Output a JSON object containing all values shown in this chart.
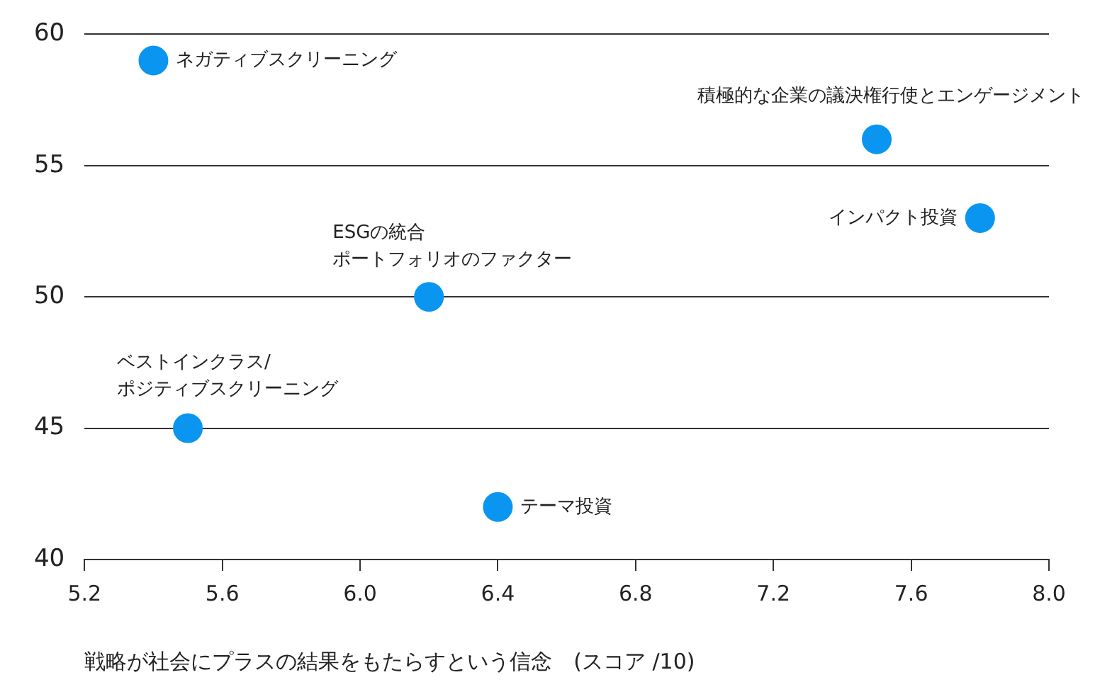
{
  "chart_data": {
    "type": "scatter",
    "xlabel": "戦略が社会にプラスの結果をもたらすという信念　(スコア /10)",
    "x": [
      5.4,
      7.5,
      7.8,
      6.2,
      5.5,
      6.4
    ],
    "values": [
      59,
      56,
      53,
      50,
      45,
      42
    ],
    "color": "#0a96f0",
    "marker": "circle",
    "grid": "y",
    "legend": false,
    "xlim": [
      5.2,
      8.0
    ],
    "xticks": [
      5.2,
      5.6,
      {
        "value": 6,
        "label": "6.0"
      },
      6.4,
      6.8,
      7.2,
      7.6,
      {
        "value": 8,
        "label": "8.0"
      }
    ],
    "ylim": [
      40,
      60
    ],
    "yticks": [
      40,
      45,
      50,
      55,
      60
    ],
    "annotations": [
      {
        "text": "ネガティブスクリーニング",
        "x": 5.4,
        "y": 59
      },
      {
        "text": "積極的な企業の議決権行使とエンゲージメント",
        "x": 7.5,
        "y": 56
      },
      {
        "text": "インパクト投資",
        "x": 7.8,
        "y": 53
      },
      {
        "text": "ESGの統合",
        "x": 6.2,
        "y": 50
      },
      {
        "text": "ポートフォリオのファクター",
        "x": 6.2,
        "y": 50
      },
      {
        "text": "ベストインクラス/",
        "x": 5.5,
        "y": 45
      },
      {
        "text": "ポジティブスクリーニング",
        "x": 5.5,
        "y": 45
      },
      {
        "text": "テーマ投資",
        "x": 6.4,
        "y": 42
      }
    ]
  }
}
